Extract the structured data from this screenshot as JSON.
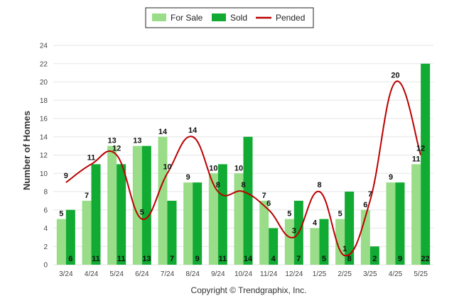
{
  "chart_data": {
    "type": "bar",
    "title": "",
    "xlabel": "",
    "ylabel": "Number of Homes",
    "ylim": [
      0,
      24
    ],
    "yticks": [
      "0",
      "2",
      "4",
      "6",
      "8",
      "10",
      "12",
      "14",
      "16",
      "18",
      "20",
      "22",
      "24"
    ],
    "grid": true,
    "legend_position": "top-center",
    "categories": [
      "3/24",
      "4/24",
      "5/24",
      "6/24",
      "7/24",
      "8/24",
      "9/24",
      "10/24",
      "11/24",
      "12/24",
      "1/25",
      "2/25",
      "3/25",
      "4/25",
      "5/25"
    ],
    "series": [
      {
        "name": "For Sale",
        "kind": "bar",
        "color": "#99dd88",
        "values": [
          5,
          7,
          13,
          13,
          14,
          9,
          10,
          10,
          7,
          5,
          4,
          5,
          6,
          9,
          11
        ]
      },
      {
        "name": "Sold",
        "kind": "bar",
        "color": "#11aa33",
        "values": [
          6,
          11,
          11,
          13,
          7,
          9,
          11,
          14,
          4,
          7,
          5,
          8,
          2,
          9,
          22
        ]
      },
      {
        "name": "Pended",
        "kind": "line",
        "color": "#bb0000",
        "values": [
          9,
          11,
          12,
          5,
          10,
          14,
          8,
          8,
          6,
          3,
          8,
          1,
          7,
          20,
          12
        ]
      }
    ]
  },
  "copyright": "Copyright © Trendgraphix, Inc."
}
